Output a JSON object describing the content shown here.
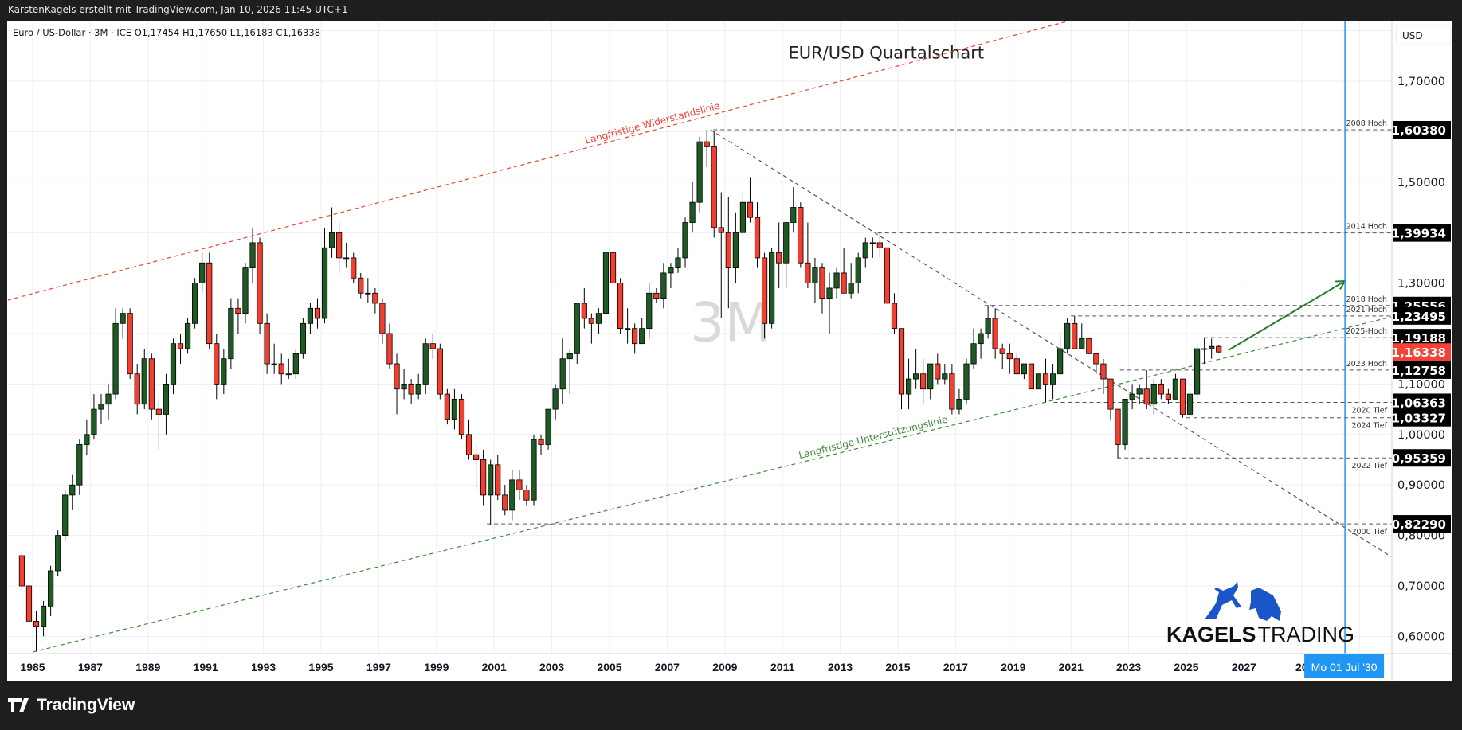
{
  "header": {
    "credit": "KarstenKagels erstellt mit TradingView.com, Jan 10, 2026 11:45 UTC+1",
    "legend": "Euro / US-Dollar · 3M · ICE   O1,17454   H1,17650   L1,16183   C1,16338"
  },
  "footer": {
    "brand": "TradingView",
    "icon": "tradingview-logo-icon"
  },
  "watermark": {
    "interval": "3M",
    "brand_bold": "KAGELS",
    "brand_light": "TRADING",
    "icons": [
      "bull-icon",
      "bear-icon"
    ],
    "brand_color": "#1a56c9"
  },
  "colors": {
    "up": "#1e5a23",
    "down": "#f23f30",
    "resistance": "#f23f30",
    "support": "#3f8a3a",
    "arrow": "#2a7a2a",
    "crosshair": "#2196f3",
    "last_price": "#f44336"
  },
  "chart_data": {
    "type": "candlestick",
    "title": "EUR/USD Quartalschart",
    "symbol": "Euro / US-Dollar",
    "interval": "3M",
    "exchange": "ICE",
    "currency": "USD",
    "ylim": [
      0.565,
      1.81
    ],
    "xlim": [
      1984.1,
      2032.1
    ],
    "grid": true,
    "yticks": [
      "1,70000",
      "1,50000",
      "1,30000",
      "1,10000",
      "1,00000",
      "0,90000",
      "0,80000",
      "0,70000",
      "0,60000"
    ],
    "ytick_values": [
      1.7,
      1.5,
      1.3,
      1.1,
      1.0,
      0.9,
      0.8,
      0.7,
      0.6
    ],
    "grid_values": [
      0.6,
      0.7,
      0.8,
      0.9,
      1.0,
      1.1,
      1.2,
      1.3,
      1.4,
      1.5,
      1.6,
      1.7,
      1.8
    ],
    "xticks": [
      "1985",
      "1987",
      "1989",
      "1991",
      "1993",
      "1995",
      "1997",
      "1999",
      "2001",
      "2003",
      "2005",
      "2007",
      "2009",
      "2011",
      "2013",
      "2015",
      "2017",
      "2019",
      "2021",
      "2023",
      "2025",
      "2027",
      "20"
    ],
    "xtick_values": [
      1985,
      1987,
      1989,
      1991,
      1993,
      1995,
      1997,
      1999,
      2001,
      2003,
      2005,
      2007,
      2009,
      2011,
      2013,
      2015,
      2017,
      2019,
      2021,
      2023,
      2025,
      2027,
      2029
    ],
    "crosshair": {
      "label": "Mo 01 Jul '30",
      "x": 2030.5
    },
    "first_quarter": "1984-Q3",
    "ohlc": [
      [
        0.76,
        0.77,
        0.69,
        0.7
      ],
      [
        0.7,
        0.71,
        0.62,
        0.63
      ],
      [
        0.63,
        0.65,
        0.57,
        0.62
      ],
      [
        0.62,
        0.67,
        0.6,
        0.66
      ],
      [
        0.66,
        0.74,
        0.64,
        0.73
      ],
      [
        0.73,
        0.81,
        0.72,
        0.8
      ],
      [
        0.8,
        0.89,
        0.79,
        0.88
      ],
      [
        0.88,
        0.92,
        0.85,
        0.9
      ],
      [
        0.9,
        0.99,
        0.88,
        0.98
      ],
      [
        0.98,
        1.03,
        0.96,
        1.0
      ],
      [
        1.0,
        1.08,
        0.99,
        1.05
      ],
      [
        1.05,
        1.08,
        1.02,
        1.06
      ],
      [
        1.06,
        1.1,
        1.03,
        1.08
      ],
      [
        1.08,
        1.25,
        1.07,
        1.22
      ],
      [
        1.22,
        1.25,
        1.19,
        1.24
      ],
      [
        1.24,
        1.25,
        1.11,
        1.12
      ],
      [
        1.12,
        1.14,
        1.04,
        1.06
      ],
      [
        1.06,
        1.17,
        1.05,
        1.15
      ],
      [
        1.15,
        1.16,
        1.03,
        1.05
      ],
      [
        1.05,
        1.07,
        0.97,
        1.04
      ],
      [
        1.04,
        1.12,
        1.0,
        1.1
      ],
      [
        1.1,
        1.19,
        1.08,
        1.18
      ],
      [
        1.18,
        1.2,
        1.14,
        1.17
      ],
      [
        1.17,
        1.23,
        1.16,
        1.22
      ],
      [
        1.22,
        1.31,
        1.21,
        1.3
      ],
      [
        1.3,
        1.36,
        1.28,
        1.34
      ],
      [
        1.34,
        1.36,
        1.17,
        1.18
      ],
      [
        1.18,
        1.2,
        1.07,
        1.1
      ],
      [
        1.1,
        1.17,
        1.08,
        1.15
      ],
      [
        1.15,
        1.27,
        1.13,
        1.25
      ],
      [
        1.25,
        1.27,
        1.2,
        1.24
      ],
      [
        1.24,
        1.34,
        1.22,
        1.33
      ],
      [
        1.33,
        1.41,
        1.3,
        1.38
      ],
      [
        1.38,
        1.39,
        1.2,
        1.22
      ],
      [
        1.22,
        1.24,
        1.12,
        1.14
      ],
      [
        1.14,
        1.18,
        1.12,
        1.14
      ],
      [
        1.14,
        1.16,
        1.1,
        1.12
      ],
      [
        1.12,
        1.15,
        1.11,
        1.12
      ],
      [
        1.12,
        1.17,
        1.11,
        1.16
      ],
      [
        1.16,
        1.23,
        1.15,
        1.22
      ],
      [
        1.22,
        1.26,
        1.2,
        1.25
      ],
      [
        1.25,
        1.27,
        1.21,
        1.23
      ],
      [
        1.23,
        1.41,
        1.22,
        1.37
      ],
      [
        1.37,
        1.45,
        1.35,
        1.4
      ],
      [
        1.4,
        1.42,
        1.32,
        1.35
      ],
      [
        1.35,
        1.38,
        1.33,
        1.35
      ],
      [
        1.35,
        1.36,
        1.3,
        1.31
      ],
      [
        1.31,
        1.32,
        1.27,
        1.28
      ],
      [
        1.28,
        1.31,
        1.26,
        1.28
      ],
      [
        1.28,
        1.29,
        1.24,
        1.26
      ],
      [
        1.26,
        1.27,
        1.18,
        1.2
      ],
      [
        1.2,
        1.22,
        1.13,
        1.14
      ],
      [
        1.14,
        1.16,
        1.04,
        1.09
      ],
      [
        1.09,
        1.13,
        1.07,
        1.1
      ],
      [
        1.1,
        1.11,
        1.06,
        1.08
      ],
      [
        1.08,
        1.12,
        1.07,
        1.1
      ],
      [
        1.1,
        1.19,
        1.08,
        1.18
      ],
      [
        1.18,
        1.2,
        1.15,
        1.17
      ],
      [
        1.17,
        1.18,
        1.07,
        1.08
      ],
      [
        1.08,
        1.09,
        1.02,
        1.03
      ],
      [
        1.03,
        1.09,
        1.01,
        1.07
      ],
      [
        1.07,
        1.08,
        0.99,
        1.0
      ],
      [
        1.0,
        1.03,
        0.95,
        0.96
      ],
      [
        0.96,
        0.98,
        0.89,
        0.95
      ],
      [
        0.95,
        0.97,
        0.86,
        0.88
      ],
      [
        0.88,
        0.95,
        0.82,
        0.94
      ],
      [
        0.94,
        0.96,
        0.87,
        0.88
      ],
      [
        0.88,
        0.9,
        0.84,
        0.85
      ],
      [
        0.85,
        0.93,
        0.83,
        0.91
      ],
      [
        0.91,
        0.93,
        0.87,
        0.89
      ],
      [
        0.89,
        0.9,
        0.86,
        0.87
      ],
      [
        0.87,
        1.0,
        0.86,
        0.99
      ],
      [
        0.99,
        1.0,
        0.96,
        0.98
      ],
      [
        0.98,
        1.05,
        0.97,
        1.05
      ],
      [
        1.05,
        1.1,
        1.03,
        1.09
      ],
      [
        1.09,
        1.19,
        1.06,
        1.15
      ],
      [
        1.15,
        1.17,
        1.08,
        1.16
      ],
      [
        1.16,
        1.26,
        1.14,
        1.26
      ],
      [
        1.26,
        1.29,
        1.21,
        1.23
      ],
      [
        1.23,
        1.24,
        1.18,
        1.22
      ],
      [
        1.22,
        1.25,
        1.2,
        1.24
      ],
      [
        1.24,
        1.37,
        1.22,
        1.36
      ],
      [
        1.36,
        1.36,
        1.28,
        1.3
      ],
      [
        1.3,
        1.31,
        1.2,
        1.21
      ],
      [
        1.21,
        1.25,
        1.18,
        1.21
      ],
      [
        1.21,
        1.22,
        1.16,
        1.18
      ],
      [
        1.18,
        1.23,
        1.18,
        1.21
      ],
      [
        1.21,
        1.3,
        1.19,
        1.28
      ],
      [
        1.28,
        1.29,
        1.26,
        1.27
      ],
      [
        1.27,
        1.34,
        1.25,
        1.32
      ],
      [
        1.32,
        1.34,
        1.29,
        1.33
      ],
      [
        1.33,
        1.37,
        1.32,
        1.35
      ],
      [
        1.35,
        1.43,
        1.33,
        1.42
      ],
      [
        1.42,
        1.5,
        1.4,
        1.46
      ],
      [
        1.46,
        1.59,
        1.44,
        1.58
      ],
      [
        1.58,
        1.6038,
        1.53,
        1.57
      ],
      [
        1.57,
        1.6,
        1.39,
        1.41
      ],
      [
        1.41,
        1.48,
        1.23,
        1.4
      ],
      [
        1.4,
        1.47,
        1.25,
        1.33
      ],
      [
        1.33,
        1.44,
        1.3,
        1.4
      ],
      [
        1.4,
        1.48,
        1.39,
        1.46
      ],
      [
        1.46,
        1.51,
        1.42,
        1.43
      ],
      [
        1.43,
        1.46,
        1.33,
        1.35
      ],
      [
        1.35,
        1.36,
        1.19,
        1.22
      ],
      [
        1.22,
        1.37,
        1.21,
        1.36
      ],
      [
        1.36,
        1.42,
        1.29,
        1.34
      ],
      [
        1.34,
        1.42,
        1.29,
        1.42
      ],
      [
        1.42,
        1.49,
        1.4,
        1.45
      ],
      [
        1.45,
        1.46,
        1.33,
        1.34
      ],
      [
        1.34,
        1.42,
        1.29,
        1.3
      ],
      [
        1.3,
        1.35,
        1.26,
        1.33
      ],
      [
        1.33,
        1.34,
        1.24,
        1.27
      ],
      [
        1.27,
        1.32,
        1.2,
        1.29
      ],
      [
        1.29,
        1.33,
        1.27,
        1.32
      ],
      [
        1.32,
        1.37,
        1.28,
        1.28
      ],
      [
        1.28,
        1.34,
        1.27,
        1.3
      ],
      [
        1.3,
        1.36,
        1.28,
        1.35
      ],
      [
        1.35,
        1.39,
        1.33,
        1.38
      ],
      [
        1.38,
        1.39,
        1.35,
        1.38
      ],
      [
        1.38,
        1.3993,
        1.35,
        1.37
      ],
      [
        1.37,
        1.37,
        1.26,
        1.26
      ],
      [
        1.26,
        1.28,
        1.2,
        1.21
      ],
      [
        1.21,
        1.21,
        1.05,
        1.08
      ],
      [
        1.08,
        1.15,
        1.05,
        1.11
      ],
      [
        1.11,
        1.17,
        1.09,
        1.12
      ],
      [
        1.12,
        1.15,
        1.06,
        1.09
      ],
      [
        1.09,
        1.14,
        1.07,
        1.14
      ],
      [
        1.14,
        1.16,
        1.1,
        1.11
      ],
      [
        1.11,
        1.14,
        1.1,
        1.12
      ],
      [
        1.12,
        1.14,
        1.04,
        1.05
      ],
      [
        1.05,
        1.09,
        1.04,
        1.07
      ],
      [
        1.07,
        1.15,
        1.06,
        1.14
      ],
      [
        1.14,
        1.21,
        1.13,
        1.18
      ],
      [
        1.18,
        1.21,
        1.15,
        1.2
      ],
      [
        1.2,
        1.2556,
        1.19,
        1.23
      ],
      [
        1.23,
        1.25,
        1.15,
        1.17
      ],
      [
        1.17,
        1.18,
        1.13,
        1.16
      ],
      [
        1.16,
        1.18,
        1.12,
        1.15
      ],
      [
        1.15,
        1.16,
        1.12,
        1.12
      ],
      [
        1.12,
        1.14,
        1.11,
        1.14
      ],
      [
        1.14,
        1.14,
        1.09,
        1.09
      ],
      [
        1.09,
        1.12,
        1.09,
        1.12
      ],
      [
        1.12,
        1.15,
        1.0636,
        1.1
      ],
      [
        1.1,
        1.14,
        1.07,
        1.12
      ],
      [
        1.12,
        1.2,
        1.12,
        1.17
      ],
      [
        1.17,
        1.23,
        1.16,
        1.22
      ],
      [
        1.22,
        1.2349,
        1.17,
        1.17
      ],
      [
        1.17,
        1.22,
        1.17,
        1.19
      ],
      [
        1.19,
        1.19,
        1.16,
        1.16
      ],
      [
        1.16,
        1.16,
        1.12,
        1.14
      ],
      [
        1.14,
        1.15,
        1.08,
        1.11
      ],
      [
        1.11,
        1.11,
        1.03,
        1.05
      ],
      [
        1.05,
        1.05,
        0.9536,
        0.98
      ],
      [
        0.98,
        1.07,
        0.97,
        1.07
      ],
      [
        1.07,
        1.1,
        1.05,
        1.08
      ],
      [
        1.08,
        1.1,
        1.06,
        1.09
      ],
      [
        1.09,
        1.1276,
        1.05,
        1.06
      ],
      [
        1.06,
        1.11,
        1.04,
        1.1
      ],
      [
        1.1,
        1.11,
        1.07,
        1.08
      ],
      [
        1.08,
        1.09,
        1.06,
        1.07
      ],
      [
        1.07,
        1.12,
        1.07,
        1.11
      ],
      [
        1.11,
        1.11,
        1.0333,
        1.04
      ],
      [
        1.04,
        1.09,
        1.02,
        1.08
      ],
      [
        1.08,
        1.18,
        1.07,
        1.17
      ],
      [
        1.17,
        1.1919,
        1.14,
        1.17
      ],
      [
        1.17,
        1.19,
        1.15,
        1.1745
      ],
      [
        1.17454,
        1.1765,
        1.16183,
        1.16338
      ]
    ],
    "levels": [
      {
        "label": "2008 Hoch",
        "price_label": "1,60380",
        "price": 1.6038,
        "from": 2008.6,
        "side": "above"
      },
      {
        "label": "2014 Hoch",
        "price_label": "1,39934",
        "price": 1.39934,
        "from": 2014.3,
        "side": "above"
      },
      {
        "label": "2018 Hoch",
        "price_label": "1,25556",
        "price": 1.25556,
        "from": 2018.0,
        "side": "above"
      },
      {
        "label": "2021 Hoch",
        "price_label": "1,23495",
        "price": 1.23495,
        "from": 2021.0,
        "side": "above"
      },
      {
        "label": "2025-Hoch",
        "price_label": "1,19188",
        "price": 1.19188,
        "from": 2025.6,
        "side": "above"
      },
      {
        "label": "2023 Hoch",
        "price_label": "1,12758",
        "price": 1.12758,
        "from": 2022.7,
        "side": "above"
      },
      {
        "label": "2020 Tief",
        "price_label": "1,06363",
        "price": 1.06363,
        "from": 2020.4,
        "side": "below"
      },
      {
        "label": "2024 Tief",
        "price_label": "1,03327",
        "price": 1.03327,
        "from": 2025.0,
        "side": "below"
      },
      {
        "label": "2022 Tief",
        "price_label": "0,95359",
        "price": 0.95359,
        "from": 2022.6,
        "side": "below"
      },
      {
        "label": "2000 Tief",
        "price_label": "0,82290",
        "price": 0.8229,
        "from": 2000.75,
        "side": "below"
      }
    ],
    "last_price": {
      "label": "1,16338",
      "price": 1.16338
    },
    "trendlines": [
      {
        "name": "resistance",
        "label": "Langfristige Widerstandslinie",
        "points": [
          [
            1984.13,
            1.266
          ],
          [
            2021.5,
            1.828
          ]
        ],
        "label_at": 0.6
      },
      {
        "name": "support",
        "label": "Langfristige Unterstützungslinie",
        "points": [
          [
            1985.0,
            0.569
          ],
          [
            2032.1,
            1.233
          ]
        ],
        "label_at": 0.62
      },
      {
        "name": "downtrend",
        "label": "",
        "points": [
          [
            2008.5,
            1.6038
          ],
          [
            2032.1,
            0.758
          ]
        ]
      }
    ],
    "arrow": {
      "points": [
        [
          2026.46,
          1.167
        ],
        [
          2030.5,
          1.304
        ]
      ]
    }
  }
}
